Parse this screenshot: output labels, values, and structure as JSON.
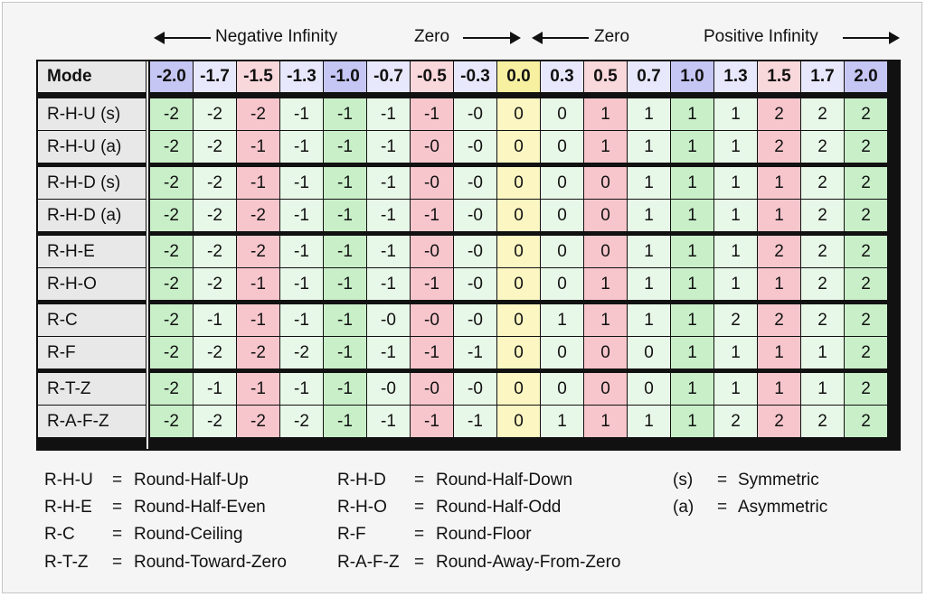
{
  "header": {
    "neg_inf": "Negative Infinity",
    "zero_left": "Zero",
    "zero_right": "Zero",
    "pos_inf": "Positive Infinity"
  },
  "table": {
    "mode_label": "Mode",
    "columns": [
      "-2.0",
      "-1.7",
      "-1.5",
      "-1.3",
      "-1.0",
      "-0.7",
      "-0.5",
      "-0.3",
      "0.0",
      "0.3",
      "0.5",
      "0.7",
      "1.0",
      "1.3",
      "1.5",
      "1.7",
      "2.0"
    ],
    "rows": [
      {
        "mode": "R-H-U (s)",
        "values": [
          "-2",
          "-2",
          "-2",
          "-1",
          "-1",
          "-1",
          "-1",
          "-0",
          "0",
          "0",
          "1",
          "1",
          "1",
          "1",
          "2",
          "2",
          "2"
        ]
      },
      {
        "mode": "R-H-U (a)",
        "values": [
          "-2",
          "-2",
          "-1",
          "-1",
          "-1",
          "-1",
          "-0",
          "-0",
          "0",
          "0",
          "1",
          "1",
          "1",
          "1",
          "2",
          "2",
          "2"
        ]
      },
      {
        "mode": "R-H-D (s)",
        "values": [
          "-2",
          "-2",
          "-1",
          "-1",
          "-1",
          "-1",
          "-0",
          "-0",
          "0",
          "0",
          "0",
          "1",
          "1",
          "1",
          "1",
          "2",
          "2"
        ]
      },
      {
        "mode": "R-H-D (a)",
        "values": [
          "-2",
          "-2",
          "-2",
          "-1",
          "-1",
          "-1",
          "-1",
          "-0",
          "0",
          "0",
          "0",
          "1",
          "1",
          "1",
          "1",
          "2",
          "2"
        ]
      },
      {
        "mode": "R-H-E",
        "values": [
          "-2",
          "-2",
          "-2",
          "-1",
          "-1",
          "-1",
          "-0",
          "-0",
          "0",
          "0",
          "0",
          "1",
          "1",
          "1",
          "2",
          "2",
          "2"
        ]
      },
      {
        "mode": "R-H-O",
        "values": [
          "-2",
          "-2",
          "-1",
          "-1",
          "-1",
          "-1",
          "-1",
          "-0",
          "0",
          "0",
          "1",
          "1",
          "1",
          "1",
          "1",
          "2",
          "2"
        ]
      },
      {
        "mode": "R-C",
        "values": [
          "-2",
          "-1",
          "-1",
          "-1",
          "-1",
          "-0",
          "-0",
          "-0",
          "0",
          "1",
          "1",
          "1",
          "1",
          "2",
          "2",
          "2",
          "2"
        ]
      },
      {
        "mode": "R-F",
        "values": [
          "-2",
          "-2",
          "-2",
          "-2",
          "-1",
          "-1",
          "-1",
          "-1",
          "0",
          "0",
          "0",
          "0",
          "1",
          "1",
          "1",
          "1",
          "2"
        ]
      },
      {
        "mode": "R-T-Z",
        "values": [
          "-2",
          "-1",
          "-1",
          "-1",
          "-1",
          "-0",
          "-0",
          "-0",
          "0",
          "0",
          "0",
          "0",
          "1",
          "1",
          "1",
          "1",
          "2"
        ]
      },
      {
        "mode": "R-A-F-Z",
        "values": [
          "-2",
          "-2",
          "-2",
          "-2",
          "-1",
          "-1",
          "-1",
          "-1",
          "0",
          "1",
          "1",
          "1",
          "1",
          "2",
          "2",
          "2",
          "2"
        ]
      }
    ]
  },
  "colors": {
    "header_integer": "#c6c6f4",
    "header_tenth": "#e8e8fc",
    "header_half": "#f9d8dc",
    "header_zero": "#f6f0a0",
    "cell_green": "#c9efc9",
    "cell_lightgreen": "#e8f8e8",
    "cell_pink": "#f7c6cc",
    "cell_yellow": "#fbf6c2",
    "mode_bg": "#e8e8e8"
  },
  "legend": [
    {
      "abbr": "R-H-U",
      "eq": "=",
      "text": "Round-Half-Up"
    },
    {
      "abbr": "R-H-D",
      "eq": "=",
      "text": "Round-Half-Down"
    },
    {
      "abbr": "(s)",
      "eq": "=",
      "text": "Symmetric"
    },
    {
      "abbr": "R-H-E",
      "eq": "=",
      "text": "Round-Half-Even"
    },
    {
      "abbr": "R-H-O",
      "eq": "=",
      "text": "Round-Half-Odd"
    },
    {
      "abbr": "(a)",
      "eq": "=",
      "text": "Asymmetric"
    },
    {
      "abbr": "R-C",
      "eq": "=",
      "text": "Round-Ceiling"
    },
    {
      "abbr": "R-F",
      "eq": "=",
      "text": "Round-Floor"
    },
    {
      "abbr": "R-T-Z",
      "eq": "=",
      "text": "Round-Toward-Zero"
    },
    {
      "abbr": "R-A-F-Z",
      "eq": "=",
      "text": "Round-Away-From-Zero"
    }
  ]
}
